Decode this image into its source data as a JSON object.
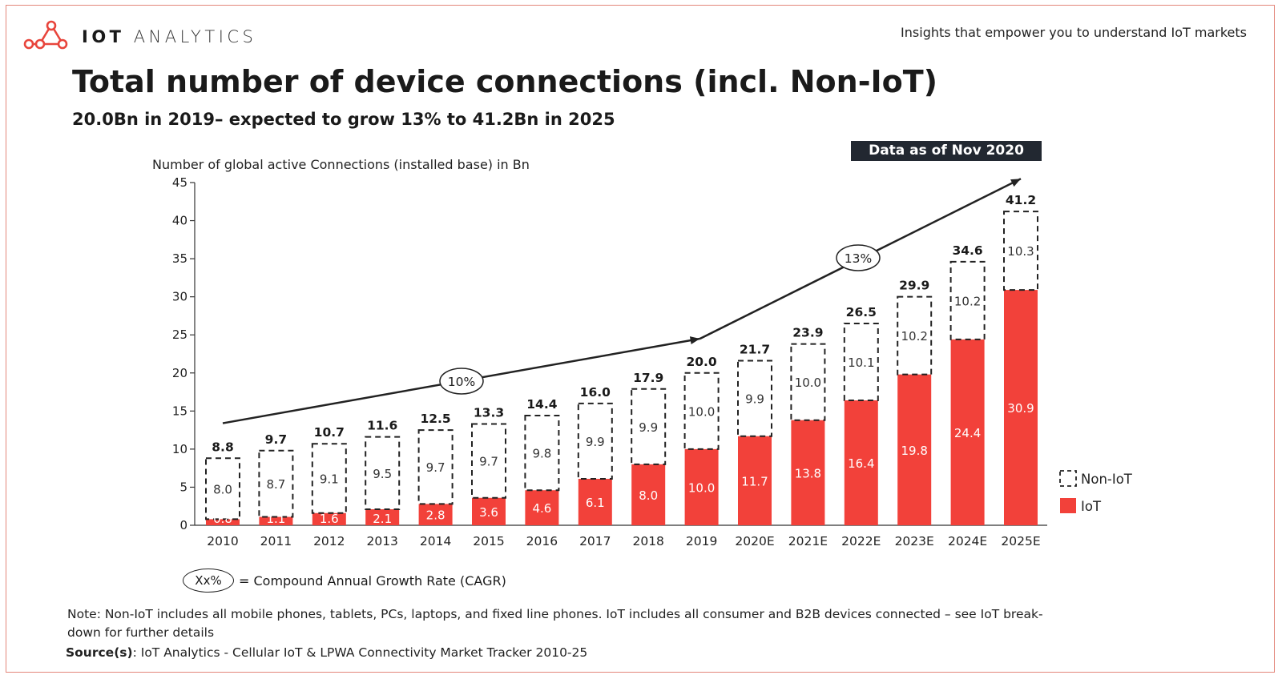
{
  "brand": {
    "name_bold": "IOT",
    "name_light": "ANALYTICS",
    "logo_color": "#e8453c",
    "tagline": "Insights that empower you to understand IoT markets"
  },
  "header": {
    "title": "Total number of device connections (incl. Non-IoT)",
    "subtitle": "20.0Bn in 2019– expected to grow 13% to 41.2Bn in 2025",
    "badge": "Data as of Nov 2020"
  },
  "chart_data": {
    "type": "bar",
    "stacked": true,
    "ylabel": "Number of global active Connections (installed base) in Bn",
    "ylim": [
      0,
      45
    ],
    "yticks": [
      0,
      5,
      10,
      15,
      20,
      25,
      30,
      35,
      40,
      45
    ],
    "categories": [
      "2010",
      "2011",
      "2012",
      "2013",
      "2014",
      "2015",
      "2016",
      "2017",
      "2018",
      "2019",
      "2020E",
      "2021E",
      "2022E",
      "2023E",
      "2024E",
      "2025E"
    ],
    "series": [
      {
        "name": "IoT",
        "color": "#f2413a",
        "style": "solid",
        "values": [
          0.8,
          1.1,
          1.6,
          2.1,
          2.8,
          3.6,
          4.6,
          6.1,
          8.0,
          10.0,
          11.7,
          13.8,
          16.4,
          19.8,
          24.4,
          30.9
        ]
      },
      {
        "name": "Non-IoT",
        "color": "#222222",
        "style": "dashed-outline",
        "values": [
          8.0,
          8.7,
          9.1,
          9.5,
          9.7,
          9.7,
          9.8,
          9.9,
          9.9,
          10.0,
          9.9,
          10.0,
          10.1,
          10.2,
          10.2,
          10.3
        ]
      }
    ],
    "totals": [
      "8.8",
      "9.7",
      "10.7",
      "11.6",
      "12.5",
      "13.3",
      "14.4",
      "16.0",
      "17.9",
      "20.0",
      "21.7",
      "23.9",
      "26.5",
      "29.9",
      "34.6",
      "41.2"
    ],
    "iot_labels": [
      "0.8",
      "1.1",
      "1.6",
      "2.1",
      "2.8",
      "3.6",
      "4.6",
      "6.1",
      "8.0",
      "10.0",
      "11.7",
      "13.8",
      "16.4",
      "19.8",
      "24.4",
      "30.9"
    ],
    "noniot_labels": [
      "8.0",
      "8.7",
      "9.1",
      "9.5",
      "9.7",
      "9.7",
      "9.8",
      "9.9",
      "9.9",
      "10.0",
      "9.9",
      "10.0",
      "10.1",
      "10.2",
      "10.2",
      "10.3"
    ],
    "cagr_annotations": [
      {
        "label": "10%",
        "from": "2010",
        "to": "2019"
      },
      {
        "label": "13%",
        "from": "2019",
        "to": "2025E"
      }
    ],
    "legend": {
      "position": "right",
      "entries": [
        "Non-IoT",
        "IoT"
      ]
    },
    "grid": false
  },
  "cagr_legend": {
    "symbol": "Xx%",
    "text": "= Compound Annual Growth Rate (CAGR)"
  },
  "footer": {
    "note": "Note: Non-IoT includes all mobile phones, tablets, PCs, laptops, and fixed line phones. IoT includes all consumer and B2B devices connected – see IoT break-down for further details",
    "source_label": "Source(s)",
    "source_text": ": IoT Analytics - Cellular IoT & LPWA Connectivity Market Tracker 2010-25"
  }
}
